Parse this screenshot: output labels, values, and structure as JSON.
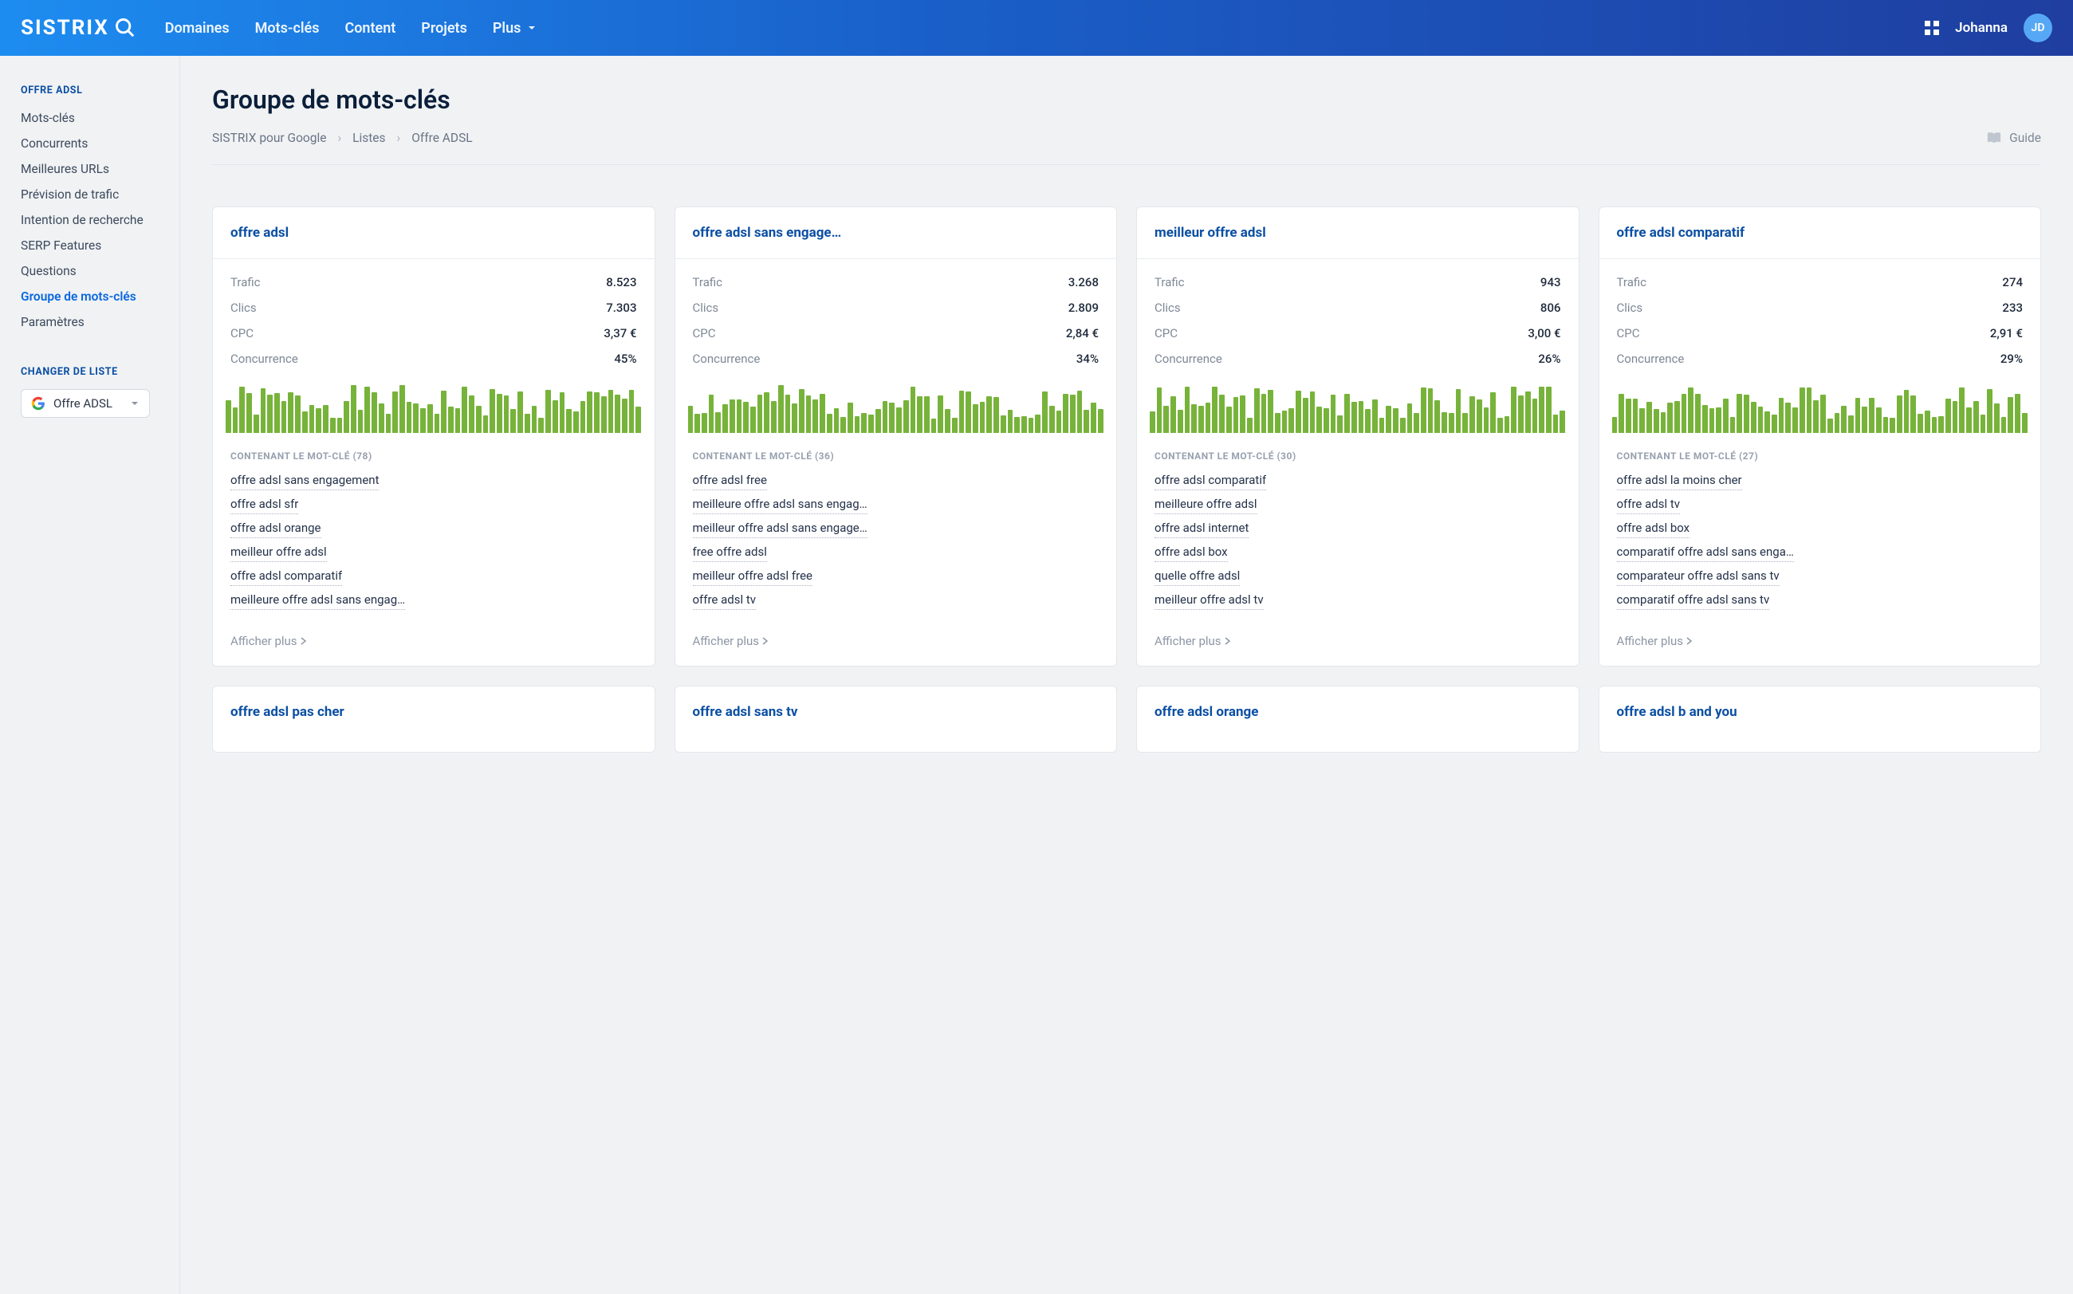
{
  "topnav": {
    "logo": "SISTRIX",
    "links": [
      "Domaines",
      "Mots-clés",
      "Content",
      "Projets",
      "Plus"
    ],
    "user_name": "Johanna",
    "avatar_initials": "JD"
  },
  "sidebar": {
    "section1_title": "OFFRE ADSL",
    "items": [
      "Mots-clés",
      "Concurrents",
      "Meilleures URLs",
      "Prévision de trafic",
      "Intention de recherche",
      "SERP Features",
      "Questions",
      "Groupe de mots-clés",
      "Paramètres"
    ],
    "active_index": 7,
    "section2_title": "CHANGER DE LISTE",
    "picker_label": "Offre ADSL"
  },
  "header": {
    "title": "Groupe de mots-clés",
    "crumbs": [
      "SISTRIX pour Google",
      "Listes",
      "Offre ADSL"
    ],
    "guide_label": "Guide"
  },
  "metric_labels": {
    "trafic": "Trafic",
    "clics": "Clics",
    "cpc": "CPC",
    "conc": "Concurrence",
    "contain_prefix": "CONTENANT LE MOT-CLÉ",
    "show_more": "Afficher plus"
  },
  "chart_style": {
    "bar_color": "#77b33a",
    "bar_count": 60,
    "min_pct": 30,
    "max_pct": 100
  },
  "cards": [
    {
      "title": "offre adsl",
      "trafic": "8.523",
      "clics": "7.303",
      "cpc": "3,37 €",
      "conc": "45%",
      "count": 78,
      "keywords": [
        "offre adsl sans engagement",
        "offre adsl sfr",
        "offre adsl orange",
        "meilleur offre adsl",
        "offre adsl comparatif",
        "meilleure offre adsl sans engag…"
      ]
    },
    {
      "title": "offre adsl sans engage…",
      "trafic": "3.268",
      "clics": "2.809",
      "cpc": "2,84 €",
      "conc": "34%",
      "count": 36,
      "keywords": [
        "offre adsl free",
        "meilleure offre adsl sans engag…",
        "meilleur offre adsl sans engage…",
        "free offre adsl",
        "meilleur offre adsl free",
        "offre adsl tv"
      ]
    },
    {
      "title": "meilleur offre adsl",
      "trafic": "943",
      "clics": "806",
      "cpc": "3,00 €",
      "conc": "26%",
      "count": 30,
      "keywords": [
        "offre adsl comparatif",
        "meilleure offre adsl",
        "offre adsl internet",
        "offre adsl box",
        "quelle offre adsl",
        "meilleur offre adsl tv"
      ]
    },
    {
      "title": "offre adsl comparatif",
      "trafic": "274",
      "clics": "233",
      "cpc": "2,91 €",
      "conc": "29%",
      "count": 27,
      "keywords": [
        "offre adsl la moins cher",
        "offre adsl tv",
        "offre adsl box",
        "comparatif offre adsl sans enga…",
        "comparateur offre adsl sans tv",
        "comparatif offre adsl sans tv"
      ]
    }
  ],
  "cards_row2": [
    {
      "title": "offre adsl pas cher"
    },
    {
      "title": "offre adsl sans tv"
    },
    {
      "title": "offre adsl orange"
    },
    {
      "title": "offre adsl b and you"
    }
  ]
}
